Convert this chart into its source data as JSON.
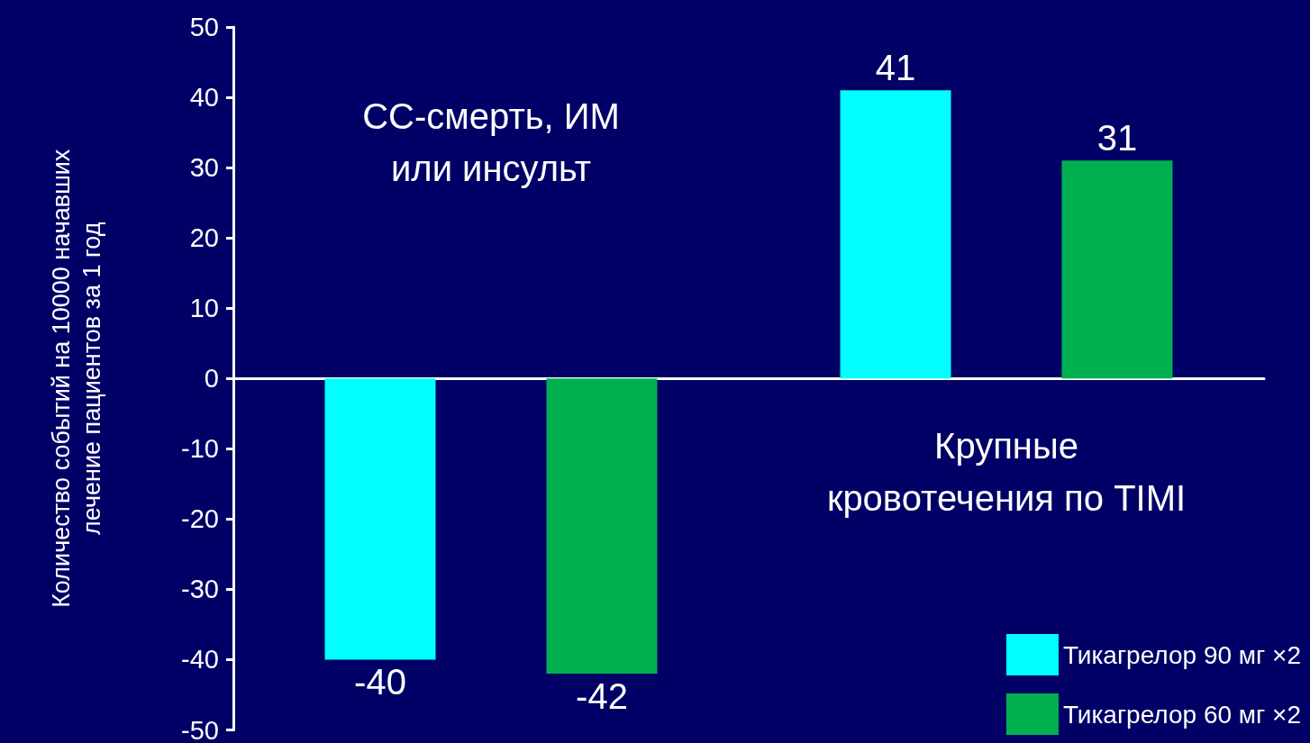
{
  "chart_data": {
    "type": "bar",
    "ylabel": "Количество событий на 10000 начавших лечение пациентов за 1 год",
    "categories": [
      "СС-смерть, ИМ или инсульт",
      "Крупные кровотечения по TIMI"
    ],
    "series": [
      {
        "name": "Тикагрелор 90 мг ×2",
        "color": "#00ffff",
        "values": [
          -40,
          41
        ]
      },
      {
        "name": "Тикагрелор 60 мг ×2",
        "color": "#00b050",
        "values": [
          -42,
          31
        ]
      }
    ],
    "ylim": [
      -50,
      50
    ],
    "yticks": [
      -50,
      -40,
      -30,
      -20,
      -10,
      0,
      10,
      20,
      30,
      40,
      50
    ],
    "data_labels": true,
    "legend": "bottom right"
  }
}
